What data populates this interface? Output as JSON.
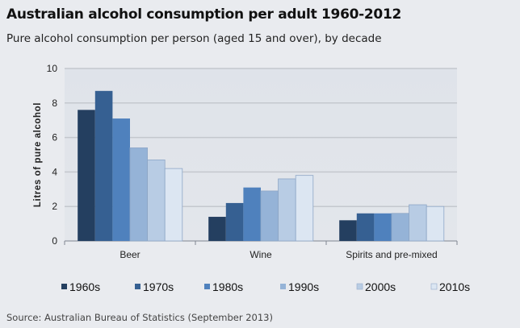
{
  "title": "Australian alcohol consumption per adult 1960-2012",
  "subtitle": "Pure alcohol consumption per person (aged 15 and over), by decade",
  "source": "Source: Australian Bureau of Statistics (September 2013)",
  "chart_data": {
    "type": "bar",
    "title": "Australian alcohol consumption per adult 1960-2012",
    "xlabel": "",
    "ylabel": "Litres of pure alcohol",
    "ylim": [
      0,
      10
    ],
    "yticks": [
      "0",
      "2",
      "4",
      "6",
      "8",
      "10"
    ],
    "grid": true,
    "legend": "bottom",
    "categories": [
      "Beer",
      "Wine",
      "Spirits and pre-mixed"
    ],
    "series": [
      {
        "name": "1960s",
        "color": "#243f60",
        "values": [
          7.6,
          1.4,
          1.2
        ]
      },
      {
        "name": "1970s",
        "color": "#366092",
        "values": [
          8.7,
          2.2,
          1.6
        ]
      },
      {
        "name": "1980s",
        "color": "#4f81bd",
        "values": [
          7.1,
          3.1,
          1.6
        ]
      },
      {
        "name": "1990s",
        "color": "#95b3d7",
        "values": [
          5.4,
          2.9,
          1.6
        ]
      },
      {
        "name": "2000s",
        "color": "#b8cce4",
        "values": [
          4.7,
          3.6,
          2.1
        ]
      },
      {
        "name": "2010s",
        "color": "#dce6f2",
        "values": [
          4.2,
          3.8,
          2.0
        ]
      }
    ]
  }
}
